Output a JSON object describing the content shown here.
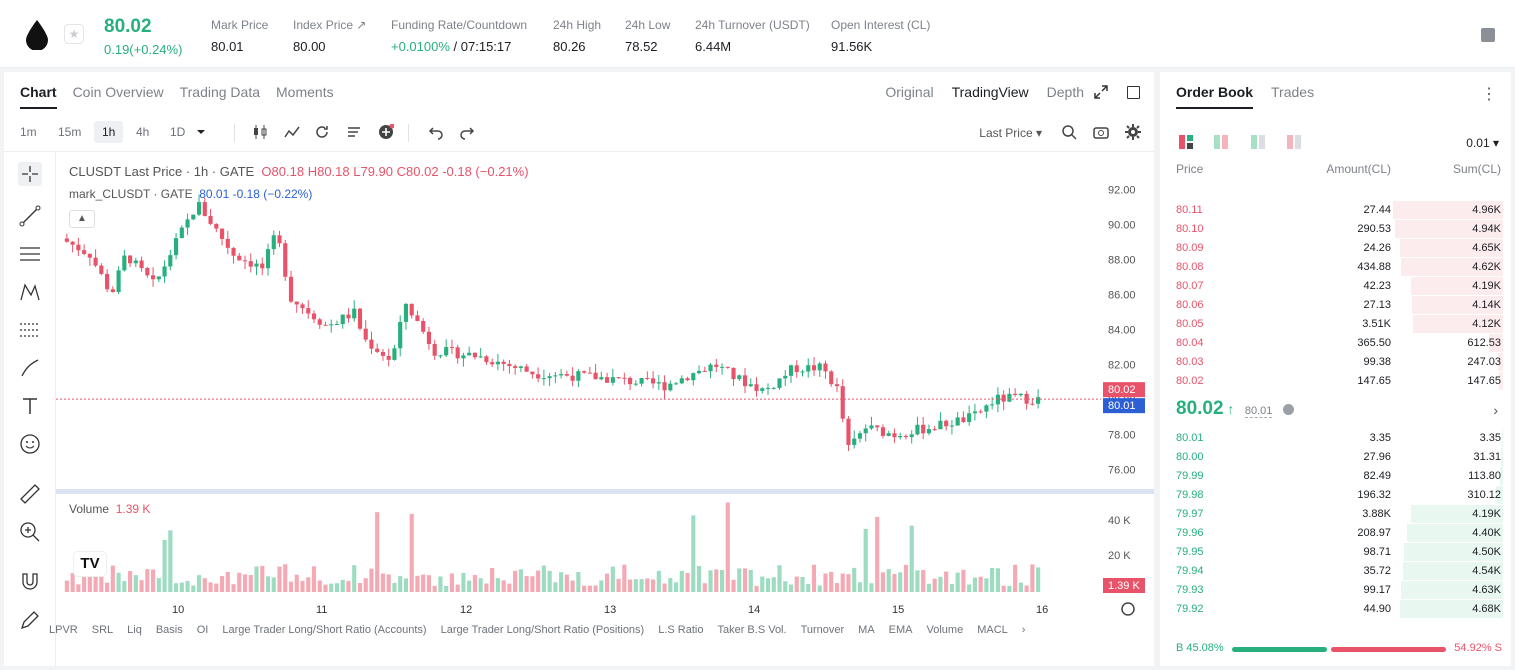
{
  "header": {
    "price": "80.02",
    "change": "0.19(+0.24%)",
    "stats": [
      {
        "label": "Mark Price",
        "value": "80.01"
      },
      {
        "label": "Index Price ↗",
        "value": "80.00"
      },
      {
        "label": "Funding Rate/Countdown",
        "value_rate": "+0.0100%",
        "value_countdown": "/ 07:15:17"
      },
      {
        "label": "24h High",
        "value": "80.26"
      },
      {
        "label": "24h Low",
        "value": "78.52"
      },
      {
        "label": "24h Turnover (USDT)",
        "value": "6.44M"
      },
      {
        "label": "Open Interest (CL)",
        "value": "91.56K"
      }
    ]
  },
  "chart_panel": {
    "tabs": [
      "Chart",
      "Coin Overview",
      "Trading Data",
      "Moments"
    ],
    "views": [
      "Original",
      "TradingView",
      "Depth"
    ],
    "intervals": [
      "1m",
      "15m",
      "1h",
      "4h",
      "1D"
    ],
    "price_type": "Last Price",
    "legend": {
      "symbol": "CLUSDT Last Price · 1h · GATE",
      "o": "O80.18",
      "h": "H80.18",
      "l": "L79.90",
      "c": "C80.02",
      "chg": "-0.18 (−0.21%)",
      "mark": "mark_CLUSDT · GATE",
      "mark_val": "80.01",
      "mark_chg": "-0.18 (−0.22%)"
    },
    "volume_label": "Volume",
    "volume_value": "1.39 K",
    "indicators": [
      "LPVR",
      "SRL",
      "Liq",
      "Basis",
      "OI",
      "Large Trader Long/Short Ratio (Accounts)",
      "Large Trader Long/Short Ratio (Positions)",
      "L.S Ratio",
      "Taker B.S Vol.",
      "Turnover",
      "MA",
      "EMA",
      "Volume",
      "MACL"
    ]
  },
  "chart_data": {
    "type": "candlestick",
    "x_ticks": [
      "10",
      "11",
      "12",
      "13",
      "14",
      "15",
      "16"
    ],
    "y_ticks": [
      "92.00",
      "90.00",
      "88.00",
      "86.00",
      "84.00",
      "82.00",
      "80.00",
      "78.00",
      "76.00"
    ],
    "last_price": "80.02",
    "mark_price": "80.01",
    "volume_ticks": [
      "40 K",
      "20 K"
    ],
    "volume_last": "1.39 K",
    "colors": {
      "up": "#27b07d",
      "down": "#e9536a",
      "mark": "#2c5fd6"
    }
  },
  "order_book": {
    "tabs": [
      "Order Book",
      "Trades"
    ],
    "precision": "0.01",
    "headers": {
      "price": "Price",
      "amount": "Amount(CL)",
      "sum": "Sum(CL)"
    },
    "asks": [
      {
        "p": "80.11",
        "a": "27.44",
        "s": "4.96K",
        "d": 0.61
      },
      {
        "p": "80.10",
        "a": "290.53",
        "s": "4.94K",
        "d": 0.6
      },
      {
        "p": "80.09",
        "a": "24.26",
        "s": "4.65K",
        "d": 0.57
      },
      {
        "p": "80.08",
        "a": "434.88",
        "s": "4.62K",
        "d": 0.565
      },
      {
        "p": "80.07",
        "a": "42.23",
        "s": "4.19K",
        "d": 0.51
      },
      {
        "p": "80.06",
        "a": "27.13",
        "s": "4.14K",
        "d": 0.505
      },
      {
        "p": "80.05",
        "a": "3.51K",
        "s": "4.12K",
        "d": 0.5
      },
      {
        "p": "80.04",
        "a": "365.50",
        "s": "612.53",
        "d": 0.08
      },
      {
        "p": "80.03",
        "a": "99.38",
        "s": "247.03",
        "d": 0.03
      },
      {
        "p": "80.02",
        "a": "147.65",
        "s": "147.65",
        "d": 0.02
      }
    ],
    "mid_price": "80.02",
    "mid_mark": "80.01",
    "bids": [
      {
        "p": "80.01",
        "a": "3.35",
        "s": "3.35",
        "d": 0.005
      },
      {
        "p": "80.00",
        "a": "27.96",
        "s": "31.31",
        "d": 0.01
      },
      {
        "p": "79.99",
        "a": "82.49",
        "s": "113.80",
        "d": 0.015
      },
      {
        "p": "79.98",
        "a": "196.32",
        "s": "310.12",
        "d": 0.04
      },
      {
        "p": "79.97",
        "a": "3.88K",
        "s": "4.19K",
        "d": 0.51
      },
      {
        "p": "79.96",
        "a": "208.97",
        "s": "4.40K",
        "d": 0.535
      },
      {
        "p": "79.95",
        "a": "98.71",
        "s": "4.50K",
        "d": 0.55
      },
      {
        "p": "79.94",
        "a": "35.72",
        "s": "4.54K",
        "d": 0.555
      },
      {
        "p": "79.93",
        "a": "99.17",
        "s": "4.63K",
        "d": 0.565
      },
      {
        "p": "79.92",
        "a": "44.90",
        "s": "4.68K",
        "d": 0.57
      }
    ],
    "buy_ratio": "B 45.08%",
    "sell_ratio": "54.92% S",
    "buy_fraction": 0.4508
  }
}
